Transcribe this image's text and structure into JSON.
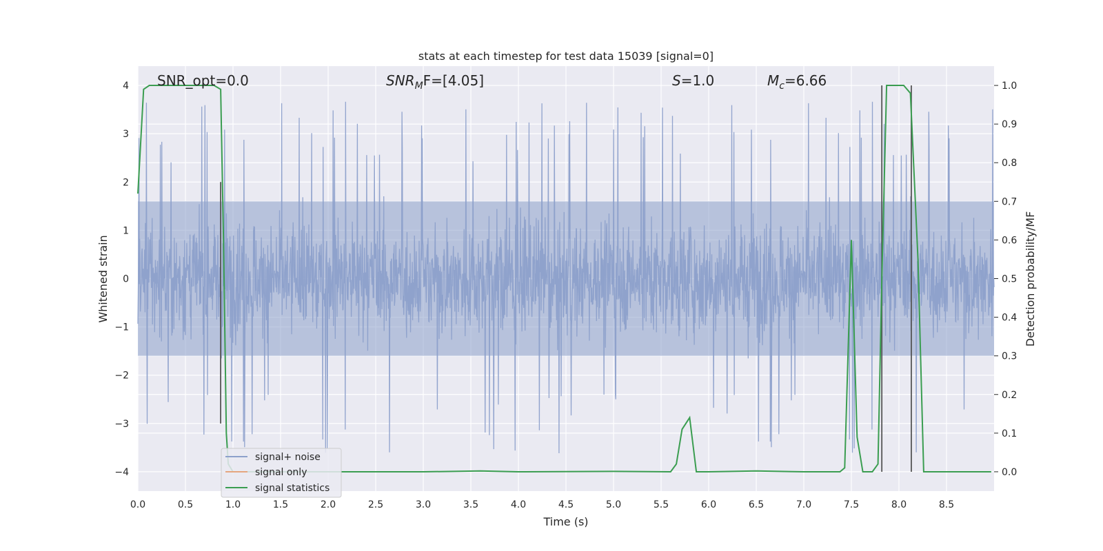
{
  "chart_data": {
    "type": "line",
    "title": "stats at each timestep for test data 15039 [signal=0]",
    "xlabel": "Time (s)",
    "ylabel_left": "Whitened strain",
    "ylabel_right": "Detection probability/MF",
    "xlim": [
      0,
      9
    ],
    "ylim_left": [
      -4.4,
      4.4
    ],
    "ylim_right": [
      -0.05,
      1.05
    ],
    "xticks": [
      0.0,
      0.5,
      1.0,
      1.5,
      2.0,
      2.5,
      3.0,
      3.5,
      4.0,
      4.5,
      5.0,
      5.5,
      6.0,
      6.5,
      7.0,
      7.5,
      8.0,
      8.5
    ],
    "xtick_labels": [
      "0.0",
      "0.5",
      "1.0",
      "1.5",
      "2.0",
      "2.5",
      "3.0",
      "3.5",
      "4.0",
      "4.5",
      "5.0",
      "5.5",
      "6.0",
      "6.5",
      "7.0",
      "7.5",
      "8.0",
      "8.5"
    ],
    "yticks_left": [
      4,
      3,
      2,
      1,
      0,
      -1,
      -2,
      -3,
      -4
    ],
    "ytick_labels_left": [
      "4",
      "3",
      "2",
      "1",
      "0",
      "−1",
      "−2",
      "−3",
      "−4"
    ],
    "yticks_right": [
      1.0,
      0.9,
      0.8,
      0.7,
      0.6,
      0.5,
      0.4,
      0.3,
      0.2,
      0.1,
      0.0
    ],
    "ytick_labels_right": [
      "1.0",
      "0.9",
      "0.8",
      "0.7",
      "0.6",
      "0.5",
      "0.4",
      "0.3",
      "0.2",
      "0.1",
      "0.0"
    ],
    "grid": true,
    "legend_position": "lower-left",
    "legend": [
      "signal+ noise",
      "signal only",
      "signal statistics"
    ],
    "colors": {
      "signal_noise": "#8da0cb",
      "signal_only": "#e5a57e",
      "signal_statistics": "#3a9d50",
      "vertical_marker": "#555555",
      "plot_background": "#eaeaf2",
      "grid": "#ffffff"
    },
    "annotations": {
      "snr_opt": "SNR_opt=0.0",
      "snr_mf_main": "SNR",
      "snr_mf_sub": "M",
      "snr_mf_tail": "F=[4.05]",
      "s_main": "S",
      "s_tail": "=1.0",
      "mc_main": "M",
      "mc_sub": "c",
      "mc_tail": "=6.66"
    },
    "signal_noise": {
      "description_free": true,
      "x_range": [
        0,
        9
      ],
      "typical_amplitude": 1.6,
      "max_peak": 4.0,
      "min_peak": -4.0
    },
    "signal_statistics": {
      "x": [
        0.0,
        0.06,
        0.12,
        0.8,
        0.87,
        0.9,
        0.93,
        0.95,
        1.0,
        2.0,
        3.0,
        3.6,
        4.0,
        5.0,
        5.6,
        5.66,
        5.72,
        5.8,
        5.87,
        6.0,
        6.5,
        7.0,
        7.38,
        7.43,
        7.5,
        7.56,
        7.62,
        7.72,
        7.78,
        7.82,
        7.87,
        8.05,
        8.12,
        8.2,
        8.26,
        8.5,
        8.97
      ],
      "y": [
        0.72,
        0.99,
        1.0,
        1.0,
        0.99,
        0.6,
        0.1,
        0.02,
        0.0,
        0.0,
        0.0,
        0.002,
        0.0,
        0.001,
        0.0,
        0.02,
        0.11,
        0.14,
        0.0,
        0.0,
        0.002,
        0.0,
        0.0,
        0.01,
        0.6,
        0.09,
        0.0,
        0.0,
        0.02,
        0.5,
        1.0,
        1.0,
        0.98,
        0.55,
        0.0,
        0.0,
        0.0
      ]
    },
    "vertical_markers": [
      {
        "x": 0.87,
        "y_top": 2.0,
        "y_bottom": -3.0
      },
      {
        "x": 7.82,
        "y_top": 4.0,
        "y_bottom": -4.0
      },
      {
        "x": 8.13,
        "y_top": 4.0,
        "y_bottom": -4.0
      }
    ]
  }
}
